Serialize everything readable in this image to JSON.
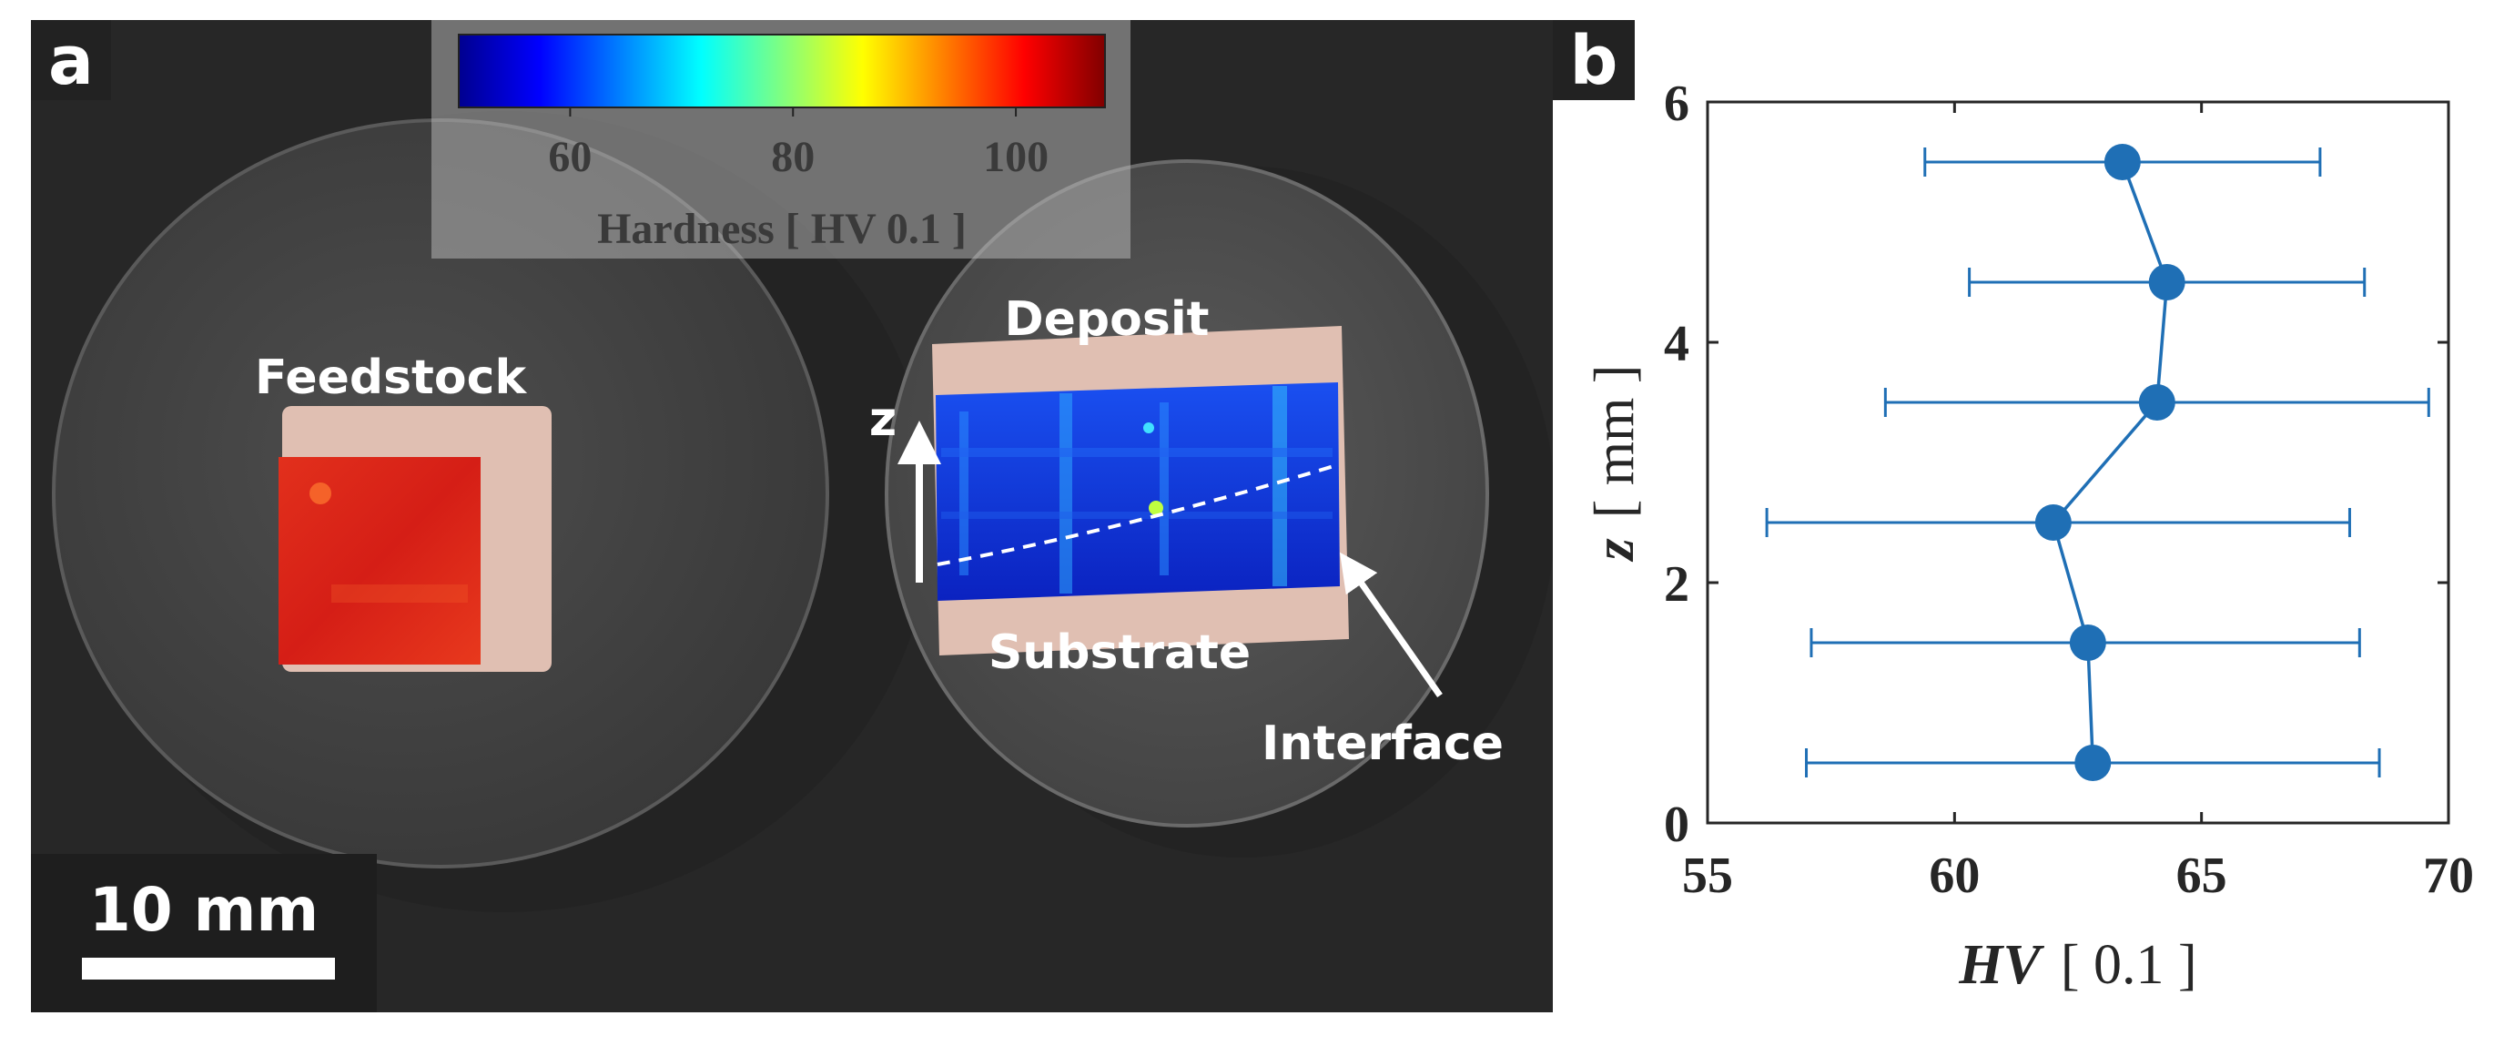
{
  "panel_a": {
    "label": "a",
    "colorbar": {
      "ticks": [
        "60",
        "80",
        "100"
      ],
      "tick_values": [
        60,
        80,
        100
      ],
      "range": [
        50,
        108
      ],
      "label": "Hardness [ HV 0.1 ]",
      "colormap": [
        "#00008f",
        "#0000ff",
        "#0080ff",
        "#00ffff",
        "#80ff80",
        "#ffff00",
        "#ff8000",
        "#ff0000",
        "#800000"
      ]
    },
    "feedstock_label": "Feedstock",
    "deposit_label": "Deposit",
    "substrate_label": "Substrate",
    "interface_label": "Interface",
    "axis_label": "z",
    "scalebar_label": "10 mm",
    "colors": {
      "background": "#2a2a2a",
      "mount": "#4c4c4c",
      "sample_frame": "#e0bfb2",
      "feedstock_map": "#e0251a",
      "deposit_map": "#1638e0"
    }
  },
  "panel_b": {
    "label": "b"
  },
  "chart_data": {
    "type": "scatter",
    "series": [
      {
        "x": [
          62.8,
          62.7,
          62.0,
          64.1,
          64.3,
          63.4
        ],
        "y": [
          0.5,
          1.5,
          2.5,
          3.5,
          4.5,
          5.5
        ],
        "xerr_low": [
          57.0,
          57.1,
          56.2,
          58.6,
          60.3,
          59.4
        ],
        "xerr_high": [
          68.6,
          68.2,
          68.0,
          69.6,
          68.3,
          67.4
        ],
        "color": "#1f6fb5"
      }
    ],
    "xlabel": "HV  [ 0.1 ]",
    "xlabel_italic": "HV",
    "xlabel_unit": "[ 0.1 ]",
    "ylabel": "z  [ mm ]",
    "ylabel_italic": "z",
    "ylabel_unit": "[ mm ]",
    "xlim": [
      55,
      70
    ],
    "ylim": [
      0,
      6
    ],
    "xticks": [
      55,
      60,
      65,
      70
    ],
    "yticks": [
      0,
      2,
      4,
      6
    ],
    "xtick_labels": [
      "55",
      "60",
      "65",
      "70"
    ],
    "ytick_labels": [
      "0",
      "2",
      "4",
      "6"
    ],
    "grid": false
  }
}
